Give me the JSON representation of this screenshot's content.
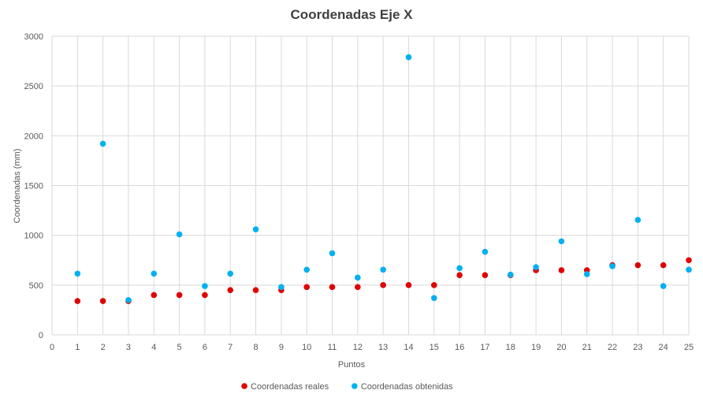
{
  "chart_data": {
    "type": "scatter",
    "title": "Coordenadas Eje X",
    "xlabel": "Puntos",
    "ylabel": "Coordenadas (mm)",
    "xlim": [
      0,
      25
    ],
    "ylim": [
      0,
      3000
    ],
    "x_ticks": [
      "0",
      "1",
      "2",
      "3",
      "4",
      "5",
      "6",
      "7",
      "8",
      "9",
      "10",
      "11",
      "12",
      "13",
      "14",
      "15",
      "16",
      "17",
      "18",
      "19",
      "20",
      "21",
      "22",
      "23",
      "24",
      "25"
    ],
    "y_ticks": [
      "0",
      "500",
      "1000",
      "1500",
      "2000",
      "2500",
      "3000"
    ],
    "grid": true,
    "legend_position": "bottom",
    "series": [
      {
        "name": "Coordenadas reales",
        "color": "#e00000",
        "x": [
          1,
          2,
          3,
          4,
          5,
          6,
          7,
          8,
          9,
          10,
          11,
          12,
          13,
          14,
          15,
          16,
          17,
          18,
          19,
          20,
          21,
          22,
          23,
          24,
          25
        ],
        "y": [
          340,
          340,
          340,
          400,
          400,
          400,
          450,
          450,
          450,
          480,
          480,
          480,
          500,
          500,
          500,
          600,
          600,
          600,
          650,
          650,
          650,
          700,
          700,
          700,
          750
        ]
      },
      {
        "name": "Coordenadas obtenidas",
        "color": "#00b0f0",
        "x": [
          1,
          2,
          3,
          4,
          5,
          6,
          7,
          8,
          9,
          10,
          11,
          12,
          13,
          14,
          15,
          16,
          17,
          18,
          19,
          20,
          21,
          22,
          23,
          24,
          25
        ],
        "y": [
          615,
          1920,
          350,
          615,
          1010,
          490,
          615,
          1060,
          480,
          655,
          820,
          575,
          655,
          2790,
          370,
          670,
          835,
          605,
          680,
          940,
          610,
          690,
          1155,
          490,
          655
        ]
      }
    ]
  }
}
